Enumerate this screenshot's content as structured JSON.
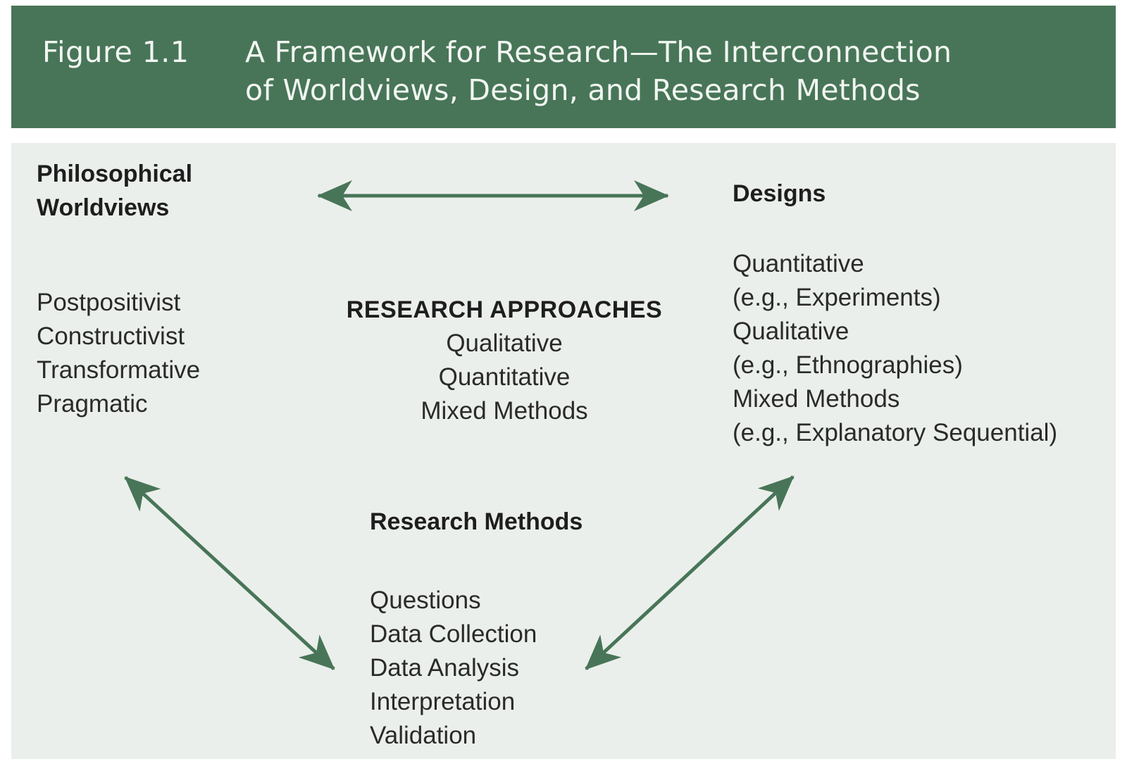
{
  "figure": {
    "label": "Figure 1.1",
    "title_line1": "A Framework for Research—The Interconnection",
    "title_line2": "of Worldviews, Design, and Research Methods"
  },
  "worldviews": {
    "heading_line1": "Philosophical",
    "heading_line2": "Worldviews",
    "items": [
      "Postpositivist",
      "Constructivist",
      "Transformative",
      "Pragmatic"
    ]
  },
  "approaches": {
    "heading": "RESEARCH APPROACHES",
    "items": [
      "Qualitative",
      "Quantitative",
      "Mixed Methods"
    ]
  },
  "designs": {
    "heading": "Designs",
    "items": [
      "Quantitative",
      "(e.g., Experiments)",
      "Qualitative",
      "(e.g., Ethnographies)",
      "Mixed Methods",
      "(e.g., Explanatory Sequential)"
    ]
  },
  "methods": {
    "heading": "Research Methods",
    "items": [
      "Questions",
      "Data Collection",
      "Data Analysis",
      "Interpretation",
      "Validation"
    ]
  },
  "colors": {
    "header_bg": "#487558",
    "panel_bg": "#ebefeb",
    "arrow": "#487558"
  }
}
